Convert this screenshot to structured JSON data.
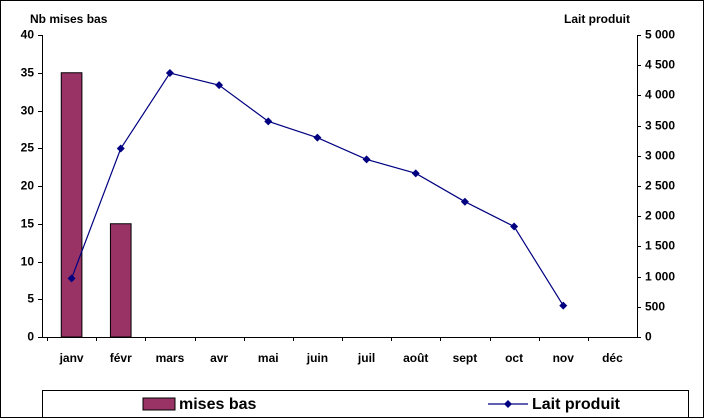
{
  "chart_data": {
    "type": "bar-line",
    "ylabel": "Nb mises bas",
    "y2label": "Lait produit",
    "categories": [
      "janv",
      "févr",
      "mars",
      "avr",
      "mai",
      "juin",
      "juil",
      "août",
      "sept",
      "oct",
      "nov",
      "déc"
    ],
    "series": [
      {
        "name": "mises bas",
        "type": "bar",
        "color": "#993366",
        "values": [
          35,
          15,
          0,
          0,
          0,
          0,
          0,
          0,
          0,
          0,
          0,
          0
        ]
      },
      {
        "name": "Lait produit",
        "type": "line",
        "axis": "y2",
        "color": "#000080",
        "values": [
          970,
          3120,
          4370,
          4170,
          3570,
          3300,
          2940,
          2710,
          2240,
          1830,
          520,
          null
        ]
      }
    ],
    "ylim": [
      0,
      40
    ],
    "yticks": [
      0,
      5,
      10,
      15,
      20,
      25,
      30,
      35,
      40
    ],
    "y2lim": [
      0,
      5000
    ],
    "y2ticks": [
      0,
      500,
      {
        "value": 1000,
        "label": "1 000"
      },
      {
        "value": 1500,
        "label": "1 500"
      },
      {
        "value": 2000,
        "label": "2 000"
      },
      {
        "value": 2500,
        "label": "2 500"
      },
      {
        "value": 3000,
        "label": "3 000"
      },
      {
        "value": 3500,
        "label": "3 500"
      },
      {
        "value": 4000,
        "label": "4 000"
      },
      {
        "value": 4500,
        "label": "4 500"
      },
      {
        "value": 5000,
        "label": "5 000"
      }
    ],
    "legend": "bottom",
    "grid": false
  }
}
